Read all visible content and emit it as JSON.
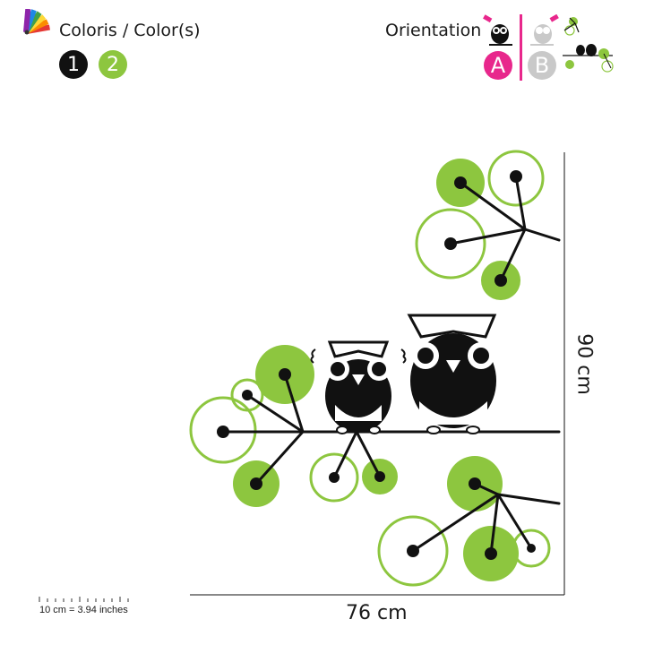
{
  "header": {
    "color_label": "Coloris / Color(s)",
    "orientation_label": "Orientation"
  },
  "colors": [
    {
      "number": "1",
      "hex": "#111111"
    },
    {
      "number": "2",
      "hex": "#8dc63f"
    }
  ],
  "orientation": {
    "option_a": "A",
    "option_b": "B",
    "active_hex": "#e8278c",
    "inactive_hex": "#c9c9c9"
  },
  "dimensions": {
    "width": "76 cm",
    "height": "90 cm",
    "scale": "10 cm = 3.94 inches"
  },
  "palette": {
    "ink": "#111111",
    "green": "#8dc63f"
  }
}
